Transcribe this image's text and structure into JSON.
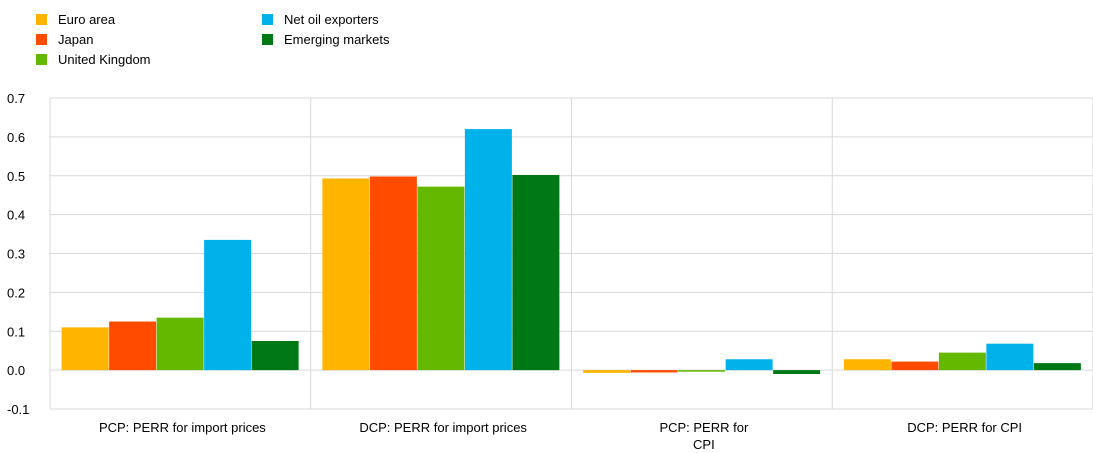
{
  "chart_data": {
    "type": "bar",
    "title": "",
    "xlabel": "",
    "ylabel": "",
    "ylim": [
      -0.1,
      0.7
    ],
    "yticks": [
      "0.7",
      "0.6",
      "0.5",
      "0.4",
      "0.3",
      "0.2",
      "0.1",
      "0.0",
      "-0.1"
    ],
    "ytick_values": [
      0.7,
      0.6,
      0.5,
      0.4,
      0.3,
      0.2,
      0.1,
      0.0,
      -0.1
    ],
    "grid": true,
    "legend_position": "top-left",
    "categories": [
      [
        "PCP: PERR for import prices"
      ],
      [
        "DCP: PERR for import prices"
      ],
      [
        "PCP: PERR for",
        "CPI"
      ],
      [
        "DCP: PERR for CPI"
      ]
    ],
    "series": [
      {
        "name": "Euro area",
        "color": "#FFB400",
        "values": [
          0.11,
          0.493,
          -0.007,
          0.028
        ]
      },
      {
        "name": "Japan",
        "color": "#FF4B00",
        "values": [
          0.125,
          0.498,
          -0.006,
          0.022
        ]
      },
      {
        "name": "United Kingdom",
        "color": "#65B800",
        "values": [
          0.135,
          0.472,
          -0.004,
          0.045
        ]
      },
      {
        "name": "Net oil exporters",
        "color": "#00B1EA",
        "values": [
          0.335,
          0.62,
          0.028,
          0.068
        ]
      },
      {
        "name": "Emerging markets",
        "color": "#007816",
        "values": [
          0.075,
          0.502,
          -0.01,
          0.018
        ]
      }
    ]
  }
}
